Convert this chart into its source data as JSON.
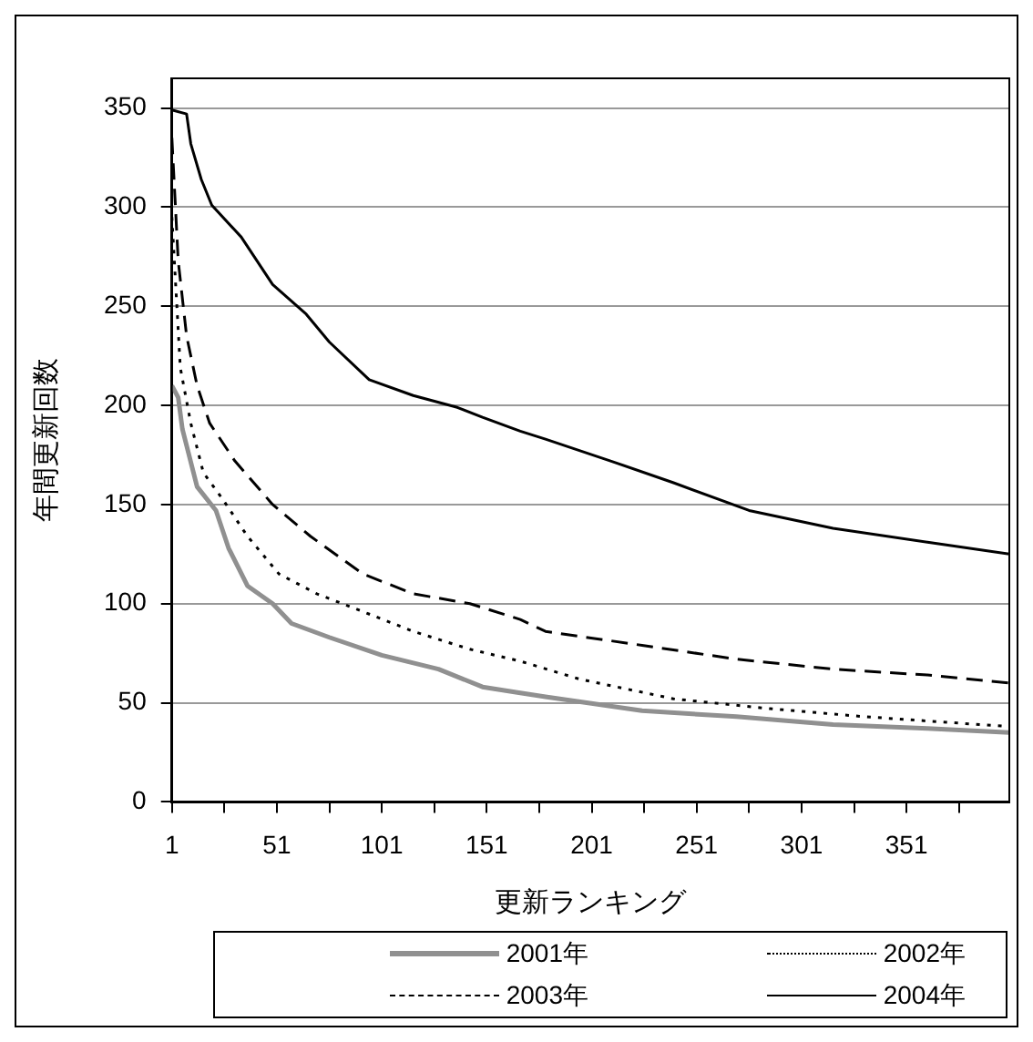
{
  "chart_data": {
    "type": "line",
    "xlabel": "更新ランキング",
    "ylabel": "年間更新回数",
    "xlim": [
      1,
      400
    ],
    "xticks": [
      1,
      {
        "value": 26,
        "label": null
      },
      51,
      {
        "value": 76,
        "label": null
      },
      101,
      {
        "value": 126,
        "label": null
      },
      151,
      {
        "value": 176,
        "label": null
      },
      201,
      {
        "value": 226,
        "label": null
      },
      251,
      {
        "value": 276,
        "label": null
      },
      301,
      {
        "value": 326,
        "label": null
      },
      351,
      {
        "value": 376,
        "label": null
      }
    ],
    "ylim": [
      0,
      365
    ],
    "yticks": [
      0,
      50,
      100,
      150,
      200,
      250,
      300,
      350
    ],
    "grid": "y",
    "legend": "bottom",
    "marker": "none",
    "series": [
      {
        "name": "2001年",
        "color": "#909090",
        "line_style": "solid",
        "x": [
          1,
          4,
          6,
          13,
          22,
          28,
          37,
          49,
          58,
          76,
          101,
          128,
          149,
          167,
          179,
          225,
          270,
          316,
          361,
          400
        ],
        "values": [
          210,
          204,
          188,
          159,
          147,
          128,
          109,
          100,
          90,
          83,
          74,
          67,
          58,
          55,
          53,
          46,
          43,
          39,
          37,
          35
        ]
      },
      {
        "name": "2002年",
        "color": "#000000",
        "line_style": "dotted",
        "x": [
          1,
          5,
          10,
          16,
          25,
          37,
          52,
          70,
          92,
          116,
          143,
          167,
          195,
          240,
          286,
          331,
          400
        ],
        "values": [
          295,
          219,
          191,
          166,
          153,
          134,
          115,
          105,
          96,
          86,
          77,
          71,
          62,
          52,
          47,
          43,
          38
        ]
      },
      {
        "name": "2003年",
        "color": "#000000",
        "line_style": "dashed",
        "x": [
          1,
          4,
          8,
          13,
          19,
          31,
          49,
          67,
          92,
          116,
          143,
          167,
          179,
          225,
          270,
          316,
          361,
          400
        ],
        "values": [
          335,
          273,
          235,
          210,
          191,
          172,
          150,
          134,
          115,
          105,
          100,
          92,
          86,
          79,
          72,
          67,
          64,
          60
        ]
      },
      {
        "name": "2004年",
        "color": "#000000",
        "line_style": "solid",
        "x": [
          1,
          8,
          10,
          15,
          20,
          34,
          49,
          65,
          76,
          95,
          116,
          137,
          149,
          167,
          179,
          210,
          240,
          276,
          316,
          361,
          400
        ],
        "values": [
          349,
          347,
          332,
          314,
          301,
          285,
          261,
          246,
          232,
          213,
          205,
          199,
          194,
          187,
          183,
          172,
          161,
          147,
          138,
          131,
          125
        ]
      }
    ]
  }
}
